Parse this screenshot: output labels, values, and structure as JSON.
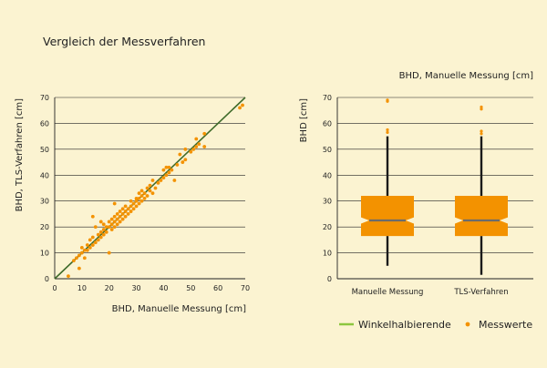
{
  "page": {
    "title": "Vergleich der Messverfahren"
  },
  "colors": {
    "background": "#fbf3d1",
    "line": "#3f6b2a",
    "legend_line": "#8cc63f",
    "points": "#f39200",
    "box": "#f39200",
    "median": "#6b6b6b",
    "whisker": "#1a1a1a"
  },
  "legend": {
    "line_label": "Winkelhalbierende",
    "points_label": "Messwerte"
  },
  "chart_data": [
    {
      "type": "scatter",
      "title": "",
      "xlabel": "BHD, Manuelle Messung [cm]",
      "ylabel": "BHD, TLS-Verfahren [cm]",
      "xlim": [
        0,
        70
      ],
      "ylim": [
        0,
        70
      ],
      "xticks": [
        "0",
        "10",
        "20",
        "30",
        "40",
        "50",
        "60",
        "70"
      ],
      "yticks": [
        "0",
        "10",
        "20",
        "30",
        "40",
        "50",
        "60",
        "70"
      ],
      "grid": "horizontal",
      "reference_line": {
        "name": "Winkelhalbierende",
        "x": [
          0,
          70
        ],
        "y": [
          0,
          70
        ]
      },
      "series": [
        {
          "name": "Messwerte",
          "points": [
            [
              5,
              1
            ],
            [
              7,
              7
            ],
            [
              8,
              8
            ],
            [
              9,
              4
            ],
            [
              9,
              9
            ],
            [
              10,
              10
            ],
            [
              10,
              12
            ],
            [
              11,
              8
            ],
            [
              11,
              11
            ],
            [
              12,
              11
            ],
            [
              12,
              13
            ],
            [
              13,
              12
            ],
            [
              13,
              15
            ],
            [
              14,
              13
            ],
            [
              14,
              16
            ],
            [
              14,
              24
            ],
            [
              15,
              14
            ],
            [
              15,
              20
            ],
            [
              16,
              15
            ],
            [
              16,
              17
            ],
            [
              17,
              16
            ],
            [
              17,
              18
            ],
            [
              17,
              22
            ],
            [
              18,
              17
            ],
            [
              18,
              19
            ],
            [
              18,
              21
            ],
            [
              19,
              18
            ],
            [
              19,
              20
            ],
            [
              20,
              10
            ],
            [
              20,
              20
            ],
            [
              20,
              22
            ],
            [
              21,
              19
            ],
            [
              21,
              21
            ],
            [
              21,
              23
            ],
            [
              22,
              20
            ],
            [
              22,
              22
            ],
            [
              22,
              24
            ],
            [
              22,
              29
            ],
            [
              23,
              21
            ],
            [
              23,
              23
            ],
            [
              23,
              25
            ],
            [
              24,
              22
            ],
            [
              24,
              24
            ],
            [
              24,
              26
            ],
            [
              25,
              23
            ],
            [
              25,
              25
            ],
            [
              25,
              27
            ],
            [
              26,
              24
            ],
            [
              26,
              26
            ],
            [
              26,
              28
            ],
            [
              27,
              25
            ],
            [
              27,
              27
            ],
            [
              28,
              26
            ],
            [
              28,
              28
            ],
            [
              28,
              30
            ],
            [
              29,
              27
            ],
            [
              29,
              29
            ],
            [
              30,
              28
            ],
            [
              30,
              30
            ],
            [
              30,
              31
            ],
            [
              31,
              29
            ],
            [
              31,
              31
            ],
            [
              31,
              33
            ],
            [
              32,
              30
            ],
            [
              32,
              32
            ],
            [
              32,
              34
            ],
            [
              33,
              31
            ],
            [
              33,
              33
            ],
            [
              34,
              32
            ],
            [
              34,
              35
            ],
            [
              35,
              34
            ],
            [
              35,
              36
            ],
            [
              36,
              33
            ],
            [
              36,
              38
            ],
            [
              37,
              35
            ],
            [
              38,
              37
            ],
            [
              39,
              38
            ],
            [
              40,
              39
            ],
            [
              40,
              42
            ],
            [
              41,
              40
            ],
            [
              41,
              43
            ],
            [
              42,
              41
            ],
            [
              42,
              43
            ],
            [
              43,
              42
            ],
            [
              44,
              38
            ],
            [
              45,
              44
            ],
            [
              46,
              48
            ],
            [
              47,
              45
            ],
            [
              48,
              46
            ],
            [
              48,
              50
            ],
            [
              50,
              49
            ],
            [
              51,
              50
            ],
            [
              52,
              51
            ],
            [
              52,
              54
            ],
            [
              53,
              52
            ],
            [
              55,
              51
            ],
            [
              55,
              56
            ],
            [
              68,
              66
            ],
            [
              69,
              67
            ]
          ]
        }
      ]
    },
    {
      "type": "boxplot",
      "title": "BHD, Manuelle Messung [cm]",
      "xlabel": "",
      "ylabel": "BHD [cm]",
      "ylim": [
        0,
        70
      ],
      "yticks": [
        "0",
        "10",
        "20",
        "30",
        "40",
        "50",
        "60",
        "70"
      ],
      "grid": "horizontal",
      "categories": [
        "Manuelle Messung",
        "TLS-Verfahren"
      ],
      "boxes": [
        {
          "category": "Manuelle Messung",
          "whisker_low": 5,
          "q1": 16.5,
          "notch_low": 21.3,
          "median": 22.5,
          "notch_high": 23.7,
          "q3": 32,
          "whisker_high": 55,
          "outliers": [
            56.5,
            57.5,
            68.5,
            69
          ]
        },
        {
          "category": "TLS-Verfahren",
          "whisker_low": 1.5,
          "q1": 16.5,
          "notch_low": 21.3,
          "median": 22.5,
          "notch_high": 23.7,
          "q3": 32,
          "whisker_high": 55,
          "outliers": [
            56,
            57,
            65.5,
            66.3
          ]
        }
      ]
    }
  ]
}
